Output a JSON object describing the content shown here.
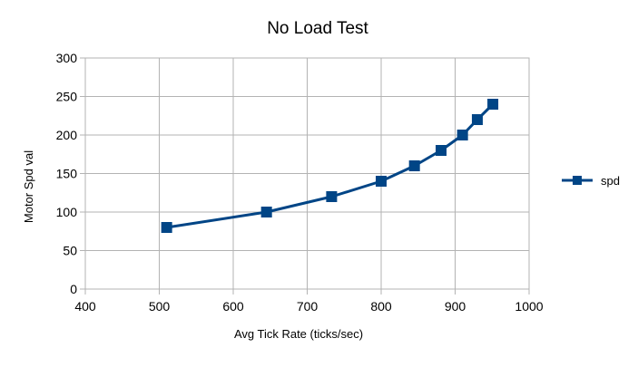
{
  "chart_data": {
    "type": "line",
    "title": "No Load Test",
    "xlabel": "Avg Tick Rate (ticks/sec)",
    "ylabel": "Motor Spd val",
    "xlim": [
      400,
      1000
    ],
    "ylim": [
      0,
      300
    ],
    "x_ticks": [
      400,
      500,
      600,
      700,
      800,
      900,
      1000
    ],
    "y_ticks": [
      0,
      50,
      100,
      150,
      200,
      250,
      300
    ],
    "grid": true,
    "legend": {
      "position": "right"
    },
    "series": [
      {
        "name": "spd",
        "color": "#004586",
        "marker": "square",
        "points": [
          {
            "x": 510,
            "y": 80
          },
          {
            "x": 645,
            "y": 100
          },
          {
            "x": 733,
            "y": 120
          },
          {
            "x": 800,
            "y": 140
          },
          {
            "x": 845,
            "y": 160
          },
          {
            "x": 881,
            "y": 180
          },
          {
            "x": 910,
            "y": 200
          },
          {
            "x": 930,
            "y": 220
          },
          {
            "x": 951,
            "y": 240
          }
        ]
      }
    ]
  }
}
